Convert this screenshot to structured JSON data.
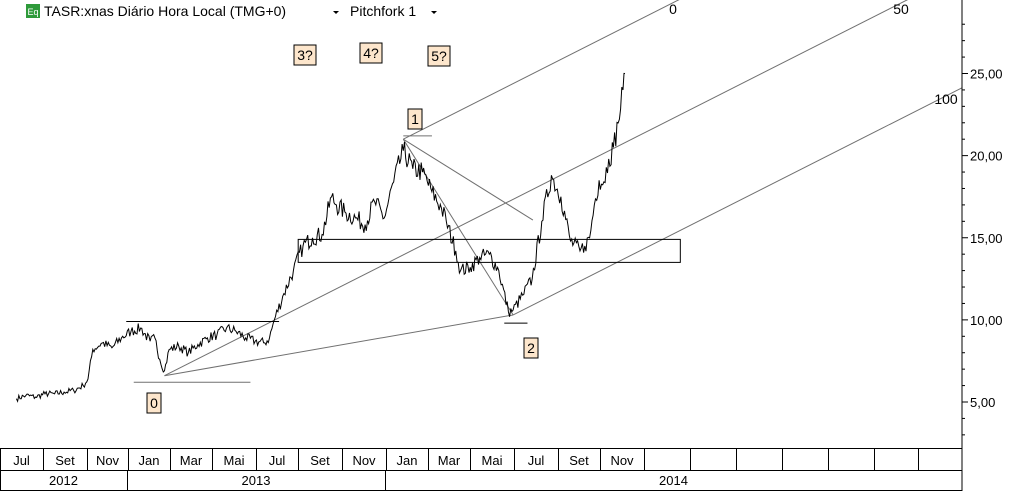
{
  "header": {
    "badge": "Eq",
    "symbol_title": "TASR:xnas Diário Hora Local (TMG+0)",
    "study_label": "Pitchfork 1"
  },
  "colors": {
    "background": "#ffffff",
    "price": "#000000",
    "lines": "#707070",
    "label_fill": "#fde6cc",
    "badge": "#2e9a3a"
  },
  "chart_data": {
    "type": "line",
    "title": "",
    "xlabel": "",
    "ylabel": "",
    "y_axis": {
      "min": 2.5,
      "max": 28.5,
      "ticks": [
        "5,00",
        "10,00",
        "15,00",
        "20,00",
        "25,00"
      ],
      "tick_values": [
        5,
        10,
        15,
        20,
        25
      ],
      "side": "right",
      "grid": false
    },
    "x_axis": {
      "months": [
        "Jul",
        "Set",
        "Nov",
        "Jan",
        "Mar",
        "Mai",
        "Jul",
        "Set",
        "Nov",
        "Jan",
        "Mar",
        "Mai",
        "Jul",
        "Set",
        "Nov"
      ],
      "years": [
        "2012",
        "2013",
        "2014"
      ]
    },
    "series": [
      {
        "points": [
          [
            "2012-06-25",
            5.2
          ],
          [
            "2012-07-09",
            5.4
          ],
          [
            "2012-07-23",
            5.3
          ],
          [
            "2012-08-06",
            5.5
          ],
          [
            "2012-08-20",
            5.5
          ],
          [
            "2012-09-03",
            5.6
          ],
          [
            "2012-09-17",
            5.7
          ],
          [
            "2012-10-01",
            6.0
          ],
          [
            "2012-10-08",
            6.4
          ],
          [
            "2012-10-15",
            8.2
          ],
          [
            "2012-10-29",
            8.6
          ],
          [
            "2012-11-12",
            8.3
          ],
          [
            "2012-11-26",
            8.9
          ],
          [
            "2012-12-10",
            9.3
          ],
          [
            "2012-12-24",
            9.5
          ],
          [
            "2013-01-07",
            8.7
          ],
          [
            "2013-01-14",
            8.9
          ],
          [
            "2013-01-21",
            7.6
          ],
          [
            "2013-01-28",
            6.9
          ],
          [
            "2013-02-04",
            8.2
          ],
          [
            "2013-02-18",
            8.4
          ],
          [
            "2013-03-04",
            8.0
          ],
          [
            "2013-03-18",
            8.5
          ],
          [
            "2013-04-01",
            8.9
          ],
          [
            "2013-04-15",
            9.1
          ],
          [
            "2013-04-29",
            9.5
          ],
          [
            "2013-05-13",
            9.3
          ],
          [
            "2013-05-27",
            8.9
          ],
          [
            "2013-06-10",
            8.7
          ],
          [
            "2013-06-24",
            8.6
          ],
          [
            "2013-07-01",
            8.9
          ],
          [
            "2013-07-08",
            10.0
          ],
          [
            "2013-07-22",
            11.6
          ],
          [
            "2013-08-05",
            13.0
          ],
          [
            "2013-08-19",
            14.5
          ],
          [
            "2013-09-02",
            15.0
          ],
          [
            "2013-09-16",
            15.2
          ],
          [
            "2013-09-30",
            17.5
          ],
          [
            "2013-10-07",
            17.0
          ],
          [
            "2013-10-21",
            16.5
          ],
          [
            "2013-11-04",
            16.2
          ],
          [
            "2013-11-18",
            15.8
          ],
          [
            "2013-12-02",
            17.2
          ],
          [
            "2013-12-16",
            16.2
          ],
          [
            "2013-12-30",
            18.4
          ],
          [
            "2014-01-13",
            20.3
          ],
          [
            "2014-01-27",
            19.2
          ],
          [
            "2014-02-10",
            19.0
          ],
          [
            "2014-02-24",
            17.8
          ],
          [
            "2014-03-10",
            16.8
          ],
          [
            "2014-03-17",
            16.0
          ],
          [
            "2014-03-31",
            14.2
          ],
          [
            "2014-04-07",
            13.0
          ],
          [
            "2014-04-21",
            13.2
          ],
          [
            "2014-05-05",
            13.8
          ],
          [
            "2014-05-19",
            14.0
          ],
          [
            "2014-06-02",
            13.0
          ],
          [
            "2014-06-16",
            10.5
          ],
          [
            "2014-06-23",
            10.6
          ],
          [
            "2014-07-07",
            11.5
          ],
          [
            "2014-07-21",
            12.5
          ],
          [
            "2014-08-04",
            16.0
          ],
          [
            "2014-08-18",
            18.8
          ],
          [
            "2014-09-01",
            17.5
          ],
          [
            "2014-09-15",
            14.8
          ],
          [
            "2014-09-29",
            14.2
          ],
          [
            "2014-10-06",
            14.5
          ],
          [
            "2014-10-13",
            15.0
          ],
          [
            "2014-10-20",
            17.0
          ],
          [
            "2014-10-27",
            18.5
          ],
          [
            "2014-11-03",
            18.4
          ],
          [
            "2014-11-10",
            19.8
          ],
          [
            "2014-11-17",
            20.5
          ],
          [
            "2014-11-24",
            22.0
          ],
          [
            "2014-12-01",
            24.0
          ],
          [
            "2014-12-04",
            25.0
          ]
        ]
      }
    ],
    "pitchfork": {
      "pivots": [
        {
          "label": "0",
          "date": "2013-01-28",
          "value": 6.6
        },
        {
          "label": "1",
          "date": "2014-01-13",
          "value": 21.0
        },
        {
          "label": "2",
          "date": "2014-06-23",
          "value": 10.3
        }
      ],
      "line_labels": [
        "0",
        "50",
        "100"
      ]
    },
    "annotations": [
      "3?",
      "4?",
      "5?"
    ],
    "zone": {
      "from": "2013-08-12",
      "to": "2015-02-23",
      "low": 13.5,
      "high": 14.9
    },
    "pivot_bars": [
      {
        "from": "2012-12-03",
        "to": "2013-07-15",
        "value": 9.9
      },
      {
        "from": "2012-12-14",
        "to": "2013-06-03",
        "value": 6.2
      },
      {
        "from": "2014-01-13",
        "to": "2014-02-24",
        "value": 21.2
      },
      {
        "from": "2014-06-10",
        "to": "2014-07-14",
        "value": 9.8
      }
    ]
  }
}
